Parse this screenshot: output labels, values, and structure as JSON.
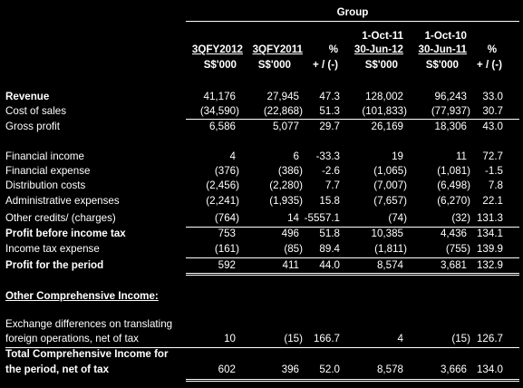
{
  "header": {
    "group": "Group",
    "columns": [
      {
        "line1": "",
        "line2": "3QFY2012",
        "line3": "S$'000"
      },
      {
        "line1": "",
        "line2": "3QFY2011",
        "line3": "S$'000"
      },
      {
        "line1": "",
        "line2": "%",
        "line3": "+ / (-)"
      },
      {
        "line1": "1-Oct-11",
        "line2": "30-Jun-12",
        "line3": "S$'000"
      },
      {
        "line1": "1-Oct-10",
        "line2": "30-Jun-11",
        "line3": "S$'000"
      },
      {
        "line1": "",
        "line2": "%",
        "line3": "+ / (-)"
      }
    ]
  },
  "rows": [
    {
      "label": "Revenue",
      "bold": true,
      "values": [
        "41,176",
        "27,945",
        "47.3",
        "128,002",
        "96,243",
        "33.0"
      ]
    },
    {
      "label": "Cost of sales",
      "bold": false,
      "values": [
        "(34,590)",
        "(22,868)",
        "51.3",
        "(101,833)",
        "(77,937)",
        "30.7"
      ]
    },
    {
      "label": "Gross profit",
      "bold": false,
      "values": [
        "6,586",
        "5,077",
        "29.7",
        "26,169",
        "18,306",
        "43.0"
      ]
    },
    {
      "label": "Financial income",
      "bold": false,
      "values": [
        "4",
        "6",
        "-33.3",
        "19",
        "11",
        "72.7"
      ]
    },
    {
      "label": "Financial expense",
      "bold": false,
      "values": [
        "(376)",
        "(386)",
        "-2.6",
        "(1,065)",
        "(1,081)",
        "-1.5"
      ]
    },
    {
      "label": "Distribution costs",
      "bold": false,
      "values": [
        "(2,456)",
        "(2,280)",
        "7.7",
        "(7,007)",
        "(6,498)",
        "7.8"
      ]
    },
    {
      "label": "Administrative expenses",
      "bold": false,
      "values": [
        "(2,241)",
        "(1,935)",
        "15.8",
        "(7,657)",
        "(6,270)",
        "22.1"
      ]
    },
    {
      "label": "Other credits/ (charges)",
      "bold": false,
      "values": [
        "(764)",
        "14",
        "-5557.1",
        "(74)",
        "(32)",
        "131.3"
      ]
    },
    {
      "label": "Profit before income tax",
      "bold": true,
      "values": [
        "753",
        "496",
        "51.8",
        "10,385",
        "4,436",
        "134.1"
      ]
    },
    {
      "label": "Income tax expense",
      "bold": false,
      "values": [
        "(161)",
        "(85)",
        "89.4",
        "(1,811)",
        "(755)",
        "139.9"
      ]
    },
    {
      "label": "Profit for the period",
      "bold": true,
      "values": [
        "592",
        "411",
        "44.0",
        "8,574",
        "3,681",
        "132.9"
      ]
    }
  ],
  "oci": {
    "heading": "Other Comprehensive Income:",
    "exchange": {
      "label1": "Exchange differences on translating",
      "label2": "foreign operations, net of tax",
      "values": [
        "10",
        "(15)",
        "166.7",
        "4",
        "(15)",
        "126.7"
      ]
    },
    "total": {
      "label1": "Total Comprehensive Income for",
      "label2": "the period, net of tax",
      "values": [
        "602",
        "396",
        "52.0",
        "8,578",
        "3,666",
        "134.0"
      ]
    }
  }
}
